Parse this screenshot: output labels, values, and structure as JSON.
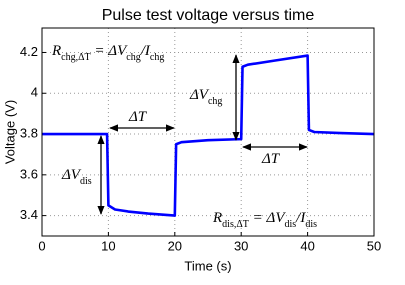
{
  "chart_data": {
    "type": "line",
    "title": "Pulse test voltage versus time",
    "xlabel": "Time (s)",
    "ylabel": "Voltage (V)",
    "x": [
      0,
      9.8,
      10,
      11,
      13,
      16,
      20,
      20.2,
      21,
      25,
      30,
      30.2,
      31,
      35,
      40,
      40.2,
      41,
      45,
      50
    ],
    "values": [
      3.8,
      3.8,
      3.45,
      3.43,
      3.42,
      3.41,
      3.4,
      3.75,
      3.76,
      3.77,
      3.775,
      4.13,
      4.14,
      4.16,
      4.185,
      3.82,
      3.81,
      3.805,
      3.8
    ],
    "color": "#0000ff",
    "xlim": [
      0,
      50
    ],
    "ylim": [
      3.3,
      4.32
    ],
    "xticks": [
      0,
      10,
      20,
      30,
      40,
      50
    ],
    "yticks": [
      3.4,
      3.6,
      3.8,
      4,
      4.2
    ],
    "grid": true,
    "annotations": {
      "r_chg": [
        {
          "t": "R"
        },
        {
          "sub": "chg,ΔT"
        },
        {
          "t": " = ΔV"
        },
        {
          "sub": "chg"
        },
        {
          "t": "/I"
        },
        {
          "sub": "chg"
        }
      ],
      "r_dis": [
        {
          "t": "R"
        },
        {
          "sub": "dis,ΔT"
        },
        {
          "t": " = ΔV"
        },
        {
          "sub": "dis"
        },
        {
          "t": "/I"
        },
        {
          "sub": "dis"
        }
      ],
      "dv_chg": [
        {
          "t": "ΔV"
        },
        {
          "sub": "chg"
        }
      ],
      "dv_dis": [
        {
          "t": "ΔV"
        },
        {
          "sub": "dis"
        }
      ],
      "dt_1": [
        {
          "t": "ΔT"
        }
      ],
      "dt_2": [
        {
          "t": "ΔT"
        }
      ]
    }
  }
}
